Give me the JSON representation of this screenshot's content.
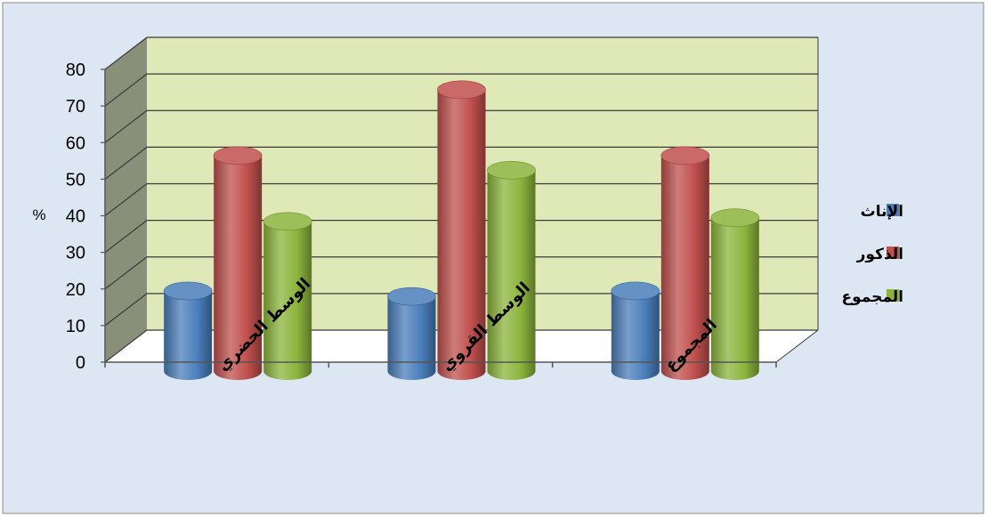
{
  "chart_data": {
    "type": "bar",
    "style": "3d-cylinder",
    "categories": [
      "الوسط الحضري",
      "الوسط القروي",
      "المجموع"
    ],
    "series": [
      {
        "name": "الإناث",
        "color": "#4a7ebb",
        "values": [
          18,
          16.5,
          18
        ]
      },
      {
        "name": "الذكور",
        "color": "#c0504d",
        "values": [
          55,
          73,
          55
        ]
      },
      {
        "name": "المجموع",
        "color": "#8cb43c",
        "values": [
          37,
          51,
          38
        ]
      }
    ],
    "ylabel": "%",
    "ylim": [
      0,
      80
    ],
    "yticks": [
      0,
      10,
      20,
      30,
      40,
      50,
      60,
      70,
      80
    ],
    "grid": true,
    "legend": "right",
    "colors": {
      "background": "#dde7f3",
      "back_wall": "#dfe9b8",
      "side_wall": "#8a8f7a",
      "floor": "#ffffff",
      "grid": "#3a3a3a"
    }
  }
}
